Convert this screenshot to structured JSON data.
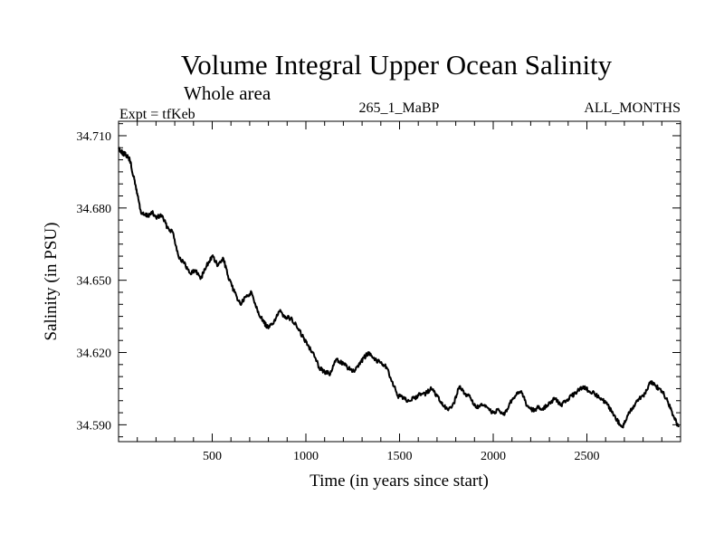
{
  "chart_data": {
    "type": "line",
    "title": "Volume Integral Upper Ocean Salinity",
    "subtitle": "Whole area",
    "experiment": "Expt = tfKeb",
    "run_id": "265_1_MaBP",
    "months": "ALL_MONTHS",
    "xlabel": "Time (in years since start)",
    "ylabel": "Salinity (in PSU)",
    "xlim": [
      0,
      3000
    ],
    "ylim": [
      34.583,
      34.716
    ],
    "x_ticks": [
      500,
      1000,
      1500,
      2000,
      2500
    ],
    "x_tick_labels": [
      "500",
      "1000",
      "1500",
      "2000",
      "2500"
    ],
    "y_ticks": [
      34.59,
      34.62,
      34.65,
      34.68,
      34.71
    ],
    "y_tick_labels": [
      "34.590",
      "34.620",
      "34.650",
      "34.680",
      "34.710"
    ],
    "grid": false,
    "series": [
      {
        "x": [
          0,
          20,
          40,
          60,
          80,
          100,
          120,
          140,
          160,
          180,
          200,
          230,
          260,
          290,
          320,
          350,
          380,
          410,
          440,
          470,
          500,
          530,
          560,
          590,
          620,
          650,
          680,
          710,
          740,
          770,
          800,
          830,
          860,
          890,
          920,
          950,
          980,
          1010,
          1040,
          1070,
          1100,
          1130,
          1160,
          1190,
          1220,
          1250,
          1280,
          1310,
          1340,
          1370,
          1400,
          1430,
          1460,
          1490,
          1520,
          1550,
          1580,
          1610,
          1640,
          1670,
          1700,
          1730,
          1760,
          1790,
          1820,
          1850,
          1880,
          1910,
          1940,
          1970,
          2000,
          2030,
          2060,
          2090,
          2120,
          2150,
          2180,
          2210,
          2240,
          2270,
          2300,
          2330,
          2360,
          2390,
          2420,
          2450,
          2480,
          2510,
          2540,
          2570,
          2600,
          2630,
          2660,
          2690,
          2720,
          2750,
          2780,
          2810,
          2840,
          2870,
          2900,
          2930,
          2960,
          2990
        ],
        "y": [
          34.705,
          34.703,
          34.702,
          34.7,
          34.693,
          34.686,
          34.678,
          34.677,
          34.677,
          34.678,
          34.676,
          34.677,
          34.672,
          34.67,
          34.66,
          34.657,
          34.653,
          34.654,
          34.651,
          34.656,
          34.66,
          34.656,
          34.659,
          34.65,
          34.645,
          34.64,
          34.643,
          34.645,
          34.638,
          34.633,
          34.63,
          34.633,
          34.637,
          34.635,
          34.634,
          34.631,
          34.627,
          34.623,
          34.62,
          34.614,
          34.612,
          34.611,
          34.617,
          34.616,
          34.614,
          34.612,
          34.614,
          34.618,
          34.62,
          34.617,
          34.616,
          34.614,
          34.608,
          34.602,
          34.601,
          34.6,
          34.601,
          34.603,
          34.603,
          34.605,
          34.602,
          34.598,
          34.596,
          34.599,
          34.606,
          34.603,
          34.601,
          34.597,
          34.598,
          34.597,
          34.595,
          34.596,
          34.594,
          34.599,
          34.602,
          34.604,
          34.598,
          34.596,
          34.597,
          34.597,
          34.599,
          34.601,
          34.598,
          34.6,
          34.602,
          34.604,
          34.606,
          34.604,
          34.603,
          34.601,
          34.599,
          34.596,
          34.592,
          34.589,
          34.594,
          34.598,
          34.601,
          34.603,
          34.608,
          34.606,
          34.604,
          34.6,
          34.594,
          34.589
        ]
      }
    ]
  }
}
